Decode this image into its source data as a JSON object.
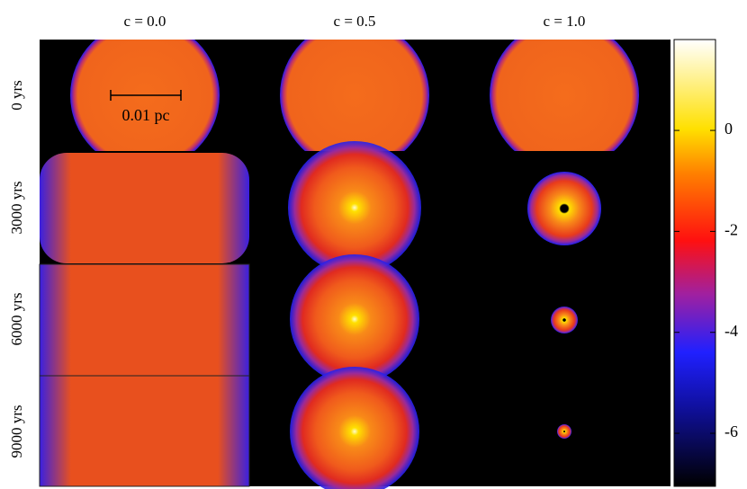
{
  "columns": [
    "c = 0.0",
    "c = 0.5",
    "c = 1.0"
  ],
  "rows": [
    "0 yrs",
    "3000 yrs",
    "6000 yrs",
    "9000 yrs"
  ],
  "scale_bar": "0.01 pc",
  "colorbar": {
    "ylim": [
      -7.05,
      1.8
    ],
    "yticks": [
      0,
      -2,
      -4,
      -6
    ]
  }
}
